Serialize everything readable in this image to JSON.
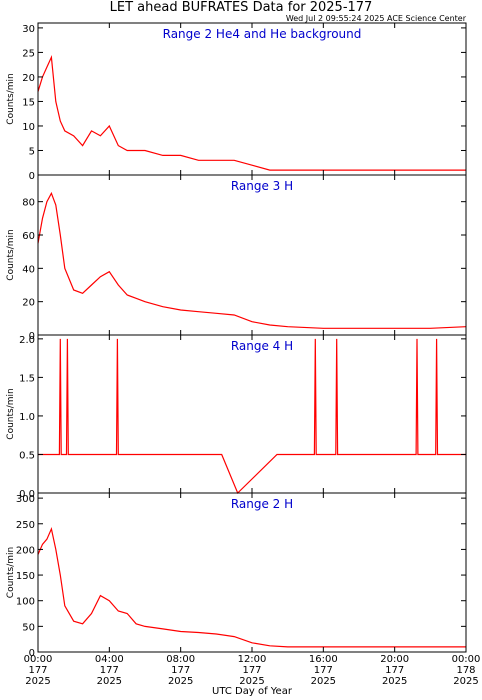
{
  "title": "LET ahead BUFRATES Data for 2025-177",
  "timestamp": "Wed Jul  2 09:55:24 2025 ACE Science Center",
  "xlabel": "UTC Day of Year",
  "colors": {
    "series": "#ff0000",
    "panel_title": "#0000cc",
    "axis": "#000000",
    "background": "#ffffff"
  },
  "x_ticks": [
    {
      "time": "00:00",
      "doy": "177",
      "year": "2025"
    },
    {
      "time": "04:00",
      "doy": "177",
      "year": "2025"
    },
    {
      "time": "08:00",
      "doy": "177",
      "year": "2025"
    },
    {
      "time": "12:00",
      "doy": "177",
      "year": "2025"
    },
    {
      "time": "16:00",
      "doy": "177",
      "year": "2025"
    },
    {
      "time": "20:00",
      "doy": "177",
      "year": "2025"
    },
    {
      "time": "00:00",
      "doy": "178",
      "year": "2025"
    }
  ],
  "chart_data": [
    {
      "type": "line",
      "title": "Range 2 He4 and He background",
      "ylabel": "Counts/min",
      "xlim": [
        0,
        24
      ],
      "ylim": [
        0,
        31
      ],
      "yticks": [
        0,
        5,
        10,
        15,
        20,
        25,
        30
      ],
      "x": [
        0,
        0.25,
        0.5,
        0.75,
        1,
        1.25,
        1.5,
        2,
        2.5,
        3,
        3.5,
        4,
        4.5,
        5,
        5.5,
        6,
        7,
        8,
        9,
        10,
        11,
        12,
        13,
        14,
        16,
        18,
        20,
        22,
        24
      ],
      "values": [
        17,
        20,
        22,
        24,
        15,
        11,
        9,
        8,
        6,
        9,
        8,
        10,
        6,
        5,
        5,
        5,
        4,
        4,
        3,
        3,
        3,
        2,
        1,
        1,
        1,
        1,
        1,
        1,
        1
      ]
    },
    {
      "type": "line",
      "title": "Range 3 H",
      "ylabel": "Counts/min",
      "xlim": [
        0,
        24
      ],
      "ylim": [
        0,
        96
      ],
      "yticks": [
        0,
        20,
        40,
        60,
        80
      ],
      "x": [
        0,
        0.25,
        0.5,
        0.75,
        1,
        1.25,
        1.5,
        2,
        2.5,
        3,
        3.5,
        4,
        4.5,
        5,
        5.5,
        6,
        7,
        8,
        9,
        10,
        11,
        12,
        13,
        14,
        16,
        18,
        20,
        22,
        24
      ],
      "values": [
        55,
        70,
        80,
        85,
        78,
        60,
        40,
        27,
        25,
        30,
        35,
        38,
        30,
        24,
        22,
        20,
        17,
        15,
        14,
        13,
        12,
        8,
        6,
        5,
        4,
        4,
        4,
        4,
        5
      ]
    },
    {
      "type": "line",
      "title": "Range 4 H",
      "ylabel": "Counts/min",
      "xlim": [
        0,
        24
      ],
      "ylim": [
        0,
        2.05
      ],
      "yticks": [
        0.0,
        0.5,
        1.0,
        1.5,
        2.0
      ],
      "x": [
        0,
        1.2,
        1.25,
        1.3,
        1.6,
        1.65,
        1.7,
        4.4,
        4.45,
        4.5,
        10.3,
        11.2,
        13.4,
        15.5,
        15.55,
        15.6,
        16.7,
        16.75,
        16.8,
        21.2,
        21.25,
        21.3,
        22.3,
        22.35,
        22.4,
        24
      ],
      "values": [
        0.5,
        0.5,
        2,
        0.5,
        0.5,
        2,
        0.5,
        0.5,
        2,
        0.5,
        0.5,
        0,
        0.5,
        0.5,
        2,
        0.5,
        0.5,
        2,
        0.5,
        0.5,
        2,
        0.5,
        0.5,
        2,
        0.5,
        0.5
      ]
    },
    {
      "type": "line",
      "title": "Range 2 H",
      "ylabel": "Counts/min",
      "xlim": [
        0,
        24
      ],
      "ylim": [
        0,
        310
      ],
      "yticks": [
        0,
        50,
        100,
        150,
        200,
        250,
        300
      ],
      "x": [
        0,
        0.25,
        0.5,
        0.75,
        1,
        1.25,
        1.5,
        2,
        2.5,
        3,
        3.5,
        4,
        4.5,
        5,
        5.5,
        6,
        7,
        8,
        9,
        10,
        11,
        12,
        13,
        14,
        16,
        18,
        20,
        22,
        24
      ],
      "values": [
        190,
        210,
        220,
        240,
        200,
        150,
        90,
        60,
        55,
        75,
        110,
        100,
        80,
        75,
        55,
        50,
        45,
        40,
        38,
        35,
        30,
        18,
        12,
        10,
        10,
        10,
        10,
        10,
        10
      ]
    }
  ]
}
